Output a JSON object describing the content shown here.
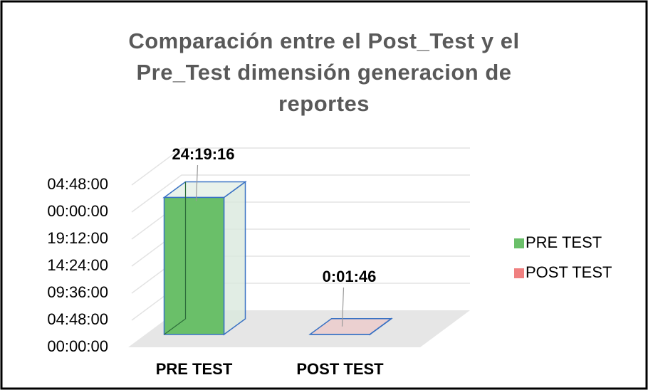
{
  "chart_data": {
    "type": "bar3d",
    "title": "Comparación entre el Post_Test y el Pre_Test dimensión generacion de reportes",
    "categories": [
      "PRE TEST",
      "POST TEST"
    ],
    "series": [
      {
        "name": "PRE TEST",
        "color": "#6abf69",
        "values": [
          24.321111,
          null
        ],
        "value_labels": [
          "24:19:16",
          null
        ]
      },
      {
        "name": "POST TEST",
        "color": "#f4a6a6",
        "values": [
          null,
          0.029444
        ],
        "value_labels": [
          null,
          "0:01:46"
        ]
      }
    ],
    "ylim": [
      0,
      28.8
    ],
    "yticks": [
      {
        "value": 0,
        "label": "00:00:00"
      },
      {
        "value": 4.8,
        "label": "04:48:00"
      },
      {
        "value": 9.6,
        "label": "09:36:00"
      },
      {
        "value": 14.4,
        "label": "14:24:00"
      },
      {
        "value": 19.2,
        "label": "19:12:00"
      },
      {
        "value": 24,
        "label": "00:00:00"
      },
      {
        "value": 28.8,
        "label": "04:48:00"
      }
    ],
    "grid": true,
    "legend": "right"
  }
}
